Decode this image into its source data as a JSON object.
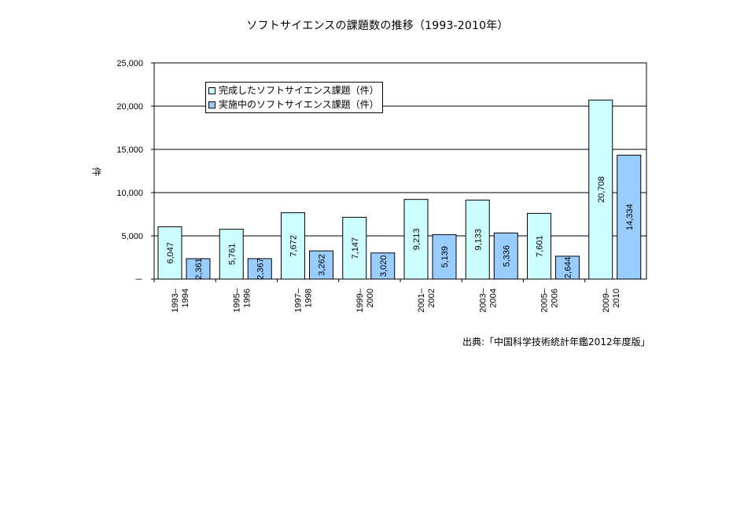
{
  "chart_data": {
    "type": "bar",
    "title": "ソフトサイエンスの課題数の推移（1993-2010年）",
    "xlabel": "",
    "ylabel": "件",
    "ylim": [
      0,
      25000
    ],
    "yticks": [
      0,
      5000,
      10000,
      15000,
      20000,
      25000
    ],
    "ytick_labels": [
      "－",
      "5,000",
      "10,000",
      "15,000",
      "20,000",
      "25,000"
    ],
    "grid": true,
    "legend_position": "top-left",
    "categories": [
      [
        "1993–",
        "1994"
      ],
      [
        "1995–",
        "1996"
      ],
      [
        "1997–",
        "1998"
      ],
      [
        "1999–",
        "2000"
      ],
      [
        "2001–",
        "2002"
      ],
      [
        "2003–",
        "2004"
      ],
      [
        "2005–",
        "2006"
      ],
      [
        "2009–",
        "2010"
      ]
    ],
    "series": [
      {
        "name": "完成したソフトサイエンス課題（件）",
        "color": "#ccffff",
        "values": [
          6047,
          5761,
          7672,
          7147,
          9213,
          9133,
          7601,
          20708
        ],
        "labels": [
          "6,047",
          "5,761",
          "7,672",
          "7,147",
          "9,213",
          "9,133",
          "7,601",
          "20,708"
        ]
      },
      {
        "name": "実施中のソフトサイエンス課題（件）",
        "color": "#99ccff",
        "values": [
          2361,
          2367,
          3262,
          3020,
          5139,
          5336,
          2644,
          14334
        ],
        "labels": [
          "2,361",
          "2,367",
          "3,262",
          "3,020",
          "5,139",
          "5,336",
          "2,644",
          "14,334"
        ]
      }
    ],
    "source": "出典:「中国科学技術統計年鑑2012年度版」"
  }
}
